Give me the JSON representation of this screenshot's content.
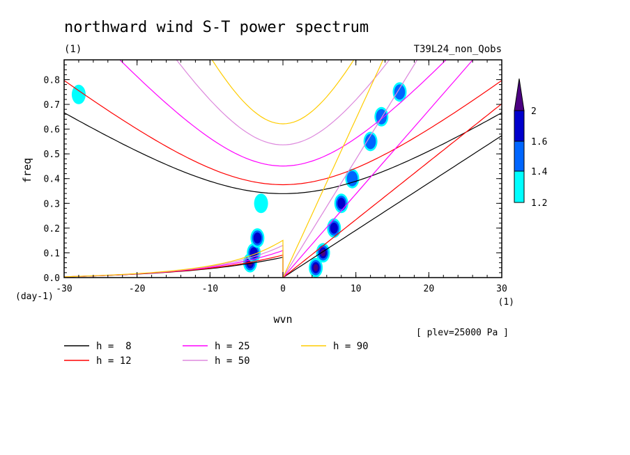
{
  "chart_data": {
    "type": "heatmap",
    "title": "northward wind S-T power spectrum",
    "units_label": "(1)",
    "run_label": "T39L24_non_Qobs",
    "xlabel": "wvn",
    "ylabel": "freq",
    "x_unit": "(1)",
    "y_unit": "(day-1)",
    "plev_label": "[ plev=25000 Pa ]",
    "xlim": [
      -30,
      30
    ],
    "ylim": [
      0.0,
      0.88
    ],
    "x_ticks": [
      "-30",
      "-20",
      "-10",
      "0",
      "10",
      "20",
      "30"
    ],
    "y_ticks": [
      "0.0",
      "0.1",
      "0.2",
      "0.3",
      "0.4",
      "0.5",
      "0.6",
      "0.7",
      "0.8"
    ],
    "colorbar": {
      "levels": [
        "1.2",
        "1.4",
        "1.6",
        "2"
      ],
      "colors": [
        "#00ffff",
        "#0066ff",
        "#0000cc",
        "#4b0082"
      ]
    },
    "legend": [
      {
        "label": "h =  8",
        "color": "#000000"
      },
      {
        "label": "h = 12",
        "color": "#ff0000"
      },
      {
        "label": "h = 25",
        "color": "#ff00ff"
      },
      {
        "label": "h = 50",
        "color": "#dd88dd"
      },
      {
        "label": "h = 90",
        "color": "#ffcc00"
      }
    ],
    "dispersion_curves": [
      {
        "h": 8,
        "color": "#000000"
      },
      {
        "h": 12,
        "color": "#ff0000"
      },
      {
        "h": 25,
        "color": "#ff00ff"
      },
      {
        "h": 50,
        "color": "#dd88dd"
      },
      {
        "h": 90,
        "color": "#ffcc00"
      }
    ],
    "features": [
      {
        "x": -4.5,
        "y": 0.06,
        "level": 4
      },
      {
        "x": -4.0,
        "y": 0.1,
        "level": 3
      },
      {
        "x": -3.5,
        "y": 0.16,
        "level": 3
      },
      {
        "x": 4.5,
        "y": 0.04,
        "level": 4
      },
      {
        "x": 5.5,
        "y": 0.1,
        "level": 4
      },
      {
        "x": 7.0,
        "y": 0.2,
        "level": 3
      },
      {
        "x": 8.0,
        "y": 0.3,
        "level": 3
      },
      {
        "x": 9.5,
        "y": 0.4,
        "level": 2
      },
      {
        "x": 12.0,
        "y": 0.55,
        "level": 2
      },
      {
        "x": 13.5,
        "y": 0.65,
        "level": 2
      },
      {
        "x": 16.0,
        "y": 0.75,
        "level": 2
      },
      {
        "x": -3.0,
        "y": 0.3,
        "level": 1
      },
      {
        "x": -28.0,
        "y": 0.74,
        "level": 1
      }
    ]
  }
}
